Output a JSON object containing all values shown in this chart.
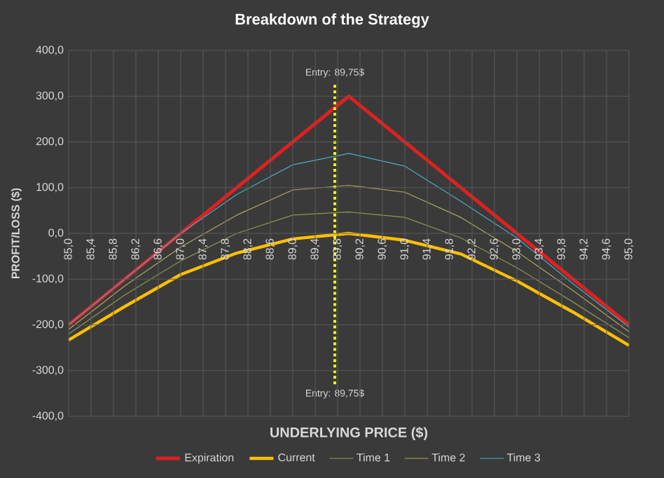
{
  "chart_data": {
    "type": "line",
    "title": "Breakdown of the Strategy",
    "xlabel": "UNDERLYING PRICE ($)",
    "ylabel": "PROFIT/LOSS ($)",
    "x": [
      85,
      86,
      87,
      88,
      89,
      90,
      91,
      92,
      93,
      94,
      95
    ],
    "series": [
      {
        "name": "Expiration",
        "color": "#e02020",
        "x": [
          85,
          90,
          95
        ],
        "values": [
          -200,
          300,
          -200
        ]
      },
      {
        "name": "Current",
        "color": "#ffc000",
        "values": [
          -233,
          -160,
          -90,
          -43,
          -12,
          0,
          -15,
          -45,
          -104,
          -172,
          -245
        ]
      },
      {
        "name": "Time 1",
        "color": "#8c9a50",
        "values": [
          -220,
          -135,
          -60,
          0,
          40,
          47,
          35,
          -10,
          -75,
          -150,
          -228
        ]
      },
      {
        "name": "Time 2",
        "color": "#b0a860",
        "values": [
          -210,
          -115,
          -30,
          40,
          95,
          105,
          90,
          35,
          -40,
          -125,
          -215
        ]
      },
      {
        "name": "Time 3",
        "color": "#4bacc6",
        "values": [
          -200,
          -100,
          0,
          85,
          150,
          175,
          147,
          70,
          -10,
          -110,
          -205
        ]
      }
    ],
    "xlim": [
      85,
      95
    ],
    "ylim": [
      -400,
      400
    ],
    "xticks": [
      {
        "value": 85.0,
        "label": "85,0"
      },
      {
        "value": 85.4,
        "label": "85,4"
      },
      {
        "value": 85.8,
        "label": "85,8"
      },
      {
        "value": 86.2,
        "label": "86,2"
      },
      {
        "value": 86.6,
        "label": "86,6"
      },
      {
        "value": 87.0,
        "label": "87,0"
      },
      {
        "value": 87.4,
        "label": "87,4"
      },
      {
        "value": 87.8,
        "label": "87,8"
      },
      {
        "value": 88.2,
        "label": "88,2"
      },
      {
        "value": 88.6,
        "label": "88,6"
      },
      {
        "value": 89.0,
        "label": "89,0"
      },
      {
        "value": 89.4,
        "label": "89,4"
      },
      {
        "value": 89.8,
        "label": "89,8"
      },
      {
        "value": 90.2,
        "label": "90,2"
      },
      {
        "value": 90.6,
        "label": "90,6"
      },
      {
        "value": 91.0,
        "label": "91,0"
      },
      {
        "value": 91.4,
        "label": "91,4"
      },
      {
        "value": 91.8,
        "label": "91,8"
      },
      {
        "value": 92.2,
        "label": "92,2"
      },
      {
        "value": 92.6,
        "label": "92,6"
      },
      {
        "value": 93.0,
        "label": "93,0"
      },
      {
        "value": 93.4,
        "label": "93,4"
      },
      {
        "value": 93.8,
        "label": "93,8"
      },
      {
        "value": 94.2,
        "label": "94,2"
      },
      {
        "value": 94.6,
        "label": "94,6"
      },
      {
        "value": 95.0,
        "label": "95,0"
      }
    ],
    "yticks": [
      {
        "value": -400,
        "label": "-400,0"
      },
      {
        "value": -300,
        "label": "-300,0"
      },
      {
        "value": -200,
        "label": "-200,0"
      },
      {
        "value": -100,
        "label": "-100,0"
      },
      {
        "value": 0,
        "label": "0,0"
      },
      {
        "value": 100,
        "label": "100,0"
      },
      {
        "value": 200,
        "label": "200,0"
      },
      {
        "value": 300,
        "label": "300,0"
      },
      {
        "value": 400,
        "label": "400,0"
      }
    ],
    "ref_lines": [
      {
        "axis": "x",
        "value": 89.75,
        "label": "Entry: 89,75$",
        "color": "#ffff00",
        "line_style": "dotted"
      }
    ],
    "annotations": [
      {
        "text": "Entry: 89,75$",
        "x": 89.75,
        "y": -330
      }
    ],
    "grid": true,
    "legend": "bottom",
    "marker": "none",
    "line_style": "solid"
  }
}
